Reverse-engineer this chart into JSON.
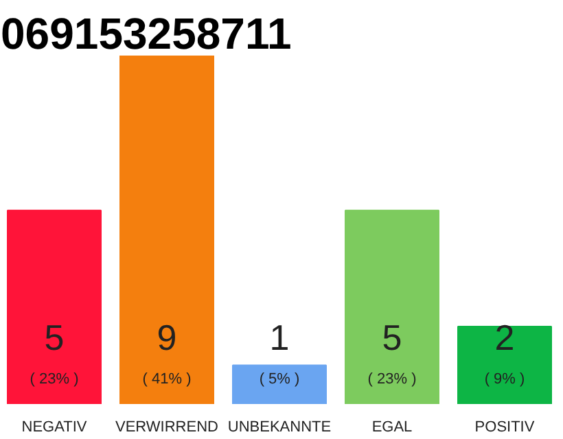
{
  "chart_data": {
    "type": "bar",
    "title": "069153258711",
    "categories": [
      "NEGATIV",
      "VERWIRREND",
      "UNBEKANNTE",
      "EGAL",
      "POSITIV"
    ],
    "values": [
      5,
      9,
      1,
      5,
      2
    ],
    "colors": [
      "#ff1439",
      "#f47f0e",
      "#6aa5f1",
      "#7dcb5e",
      "#0db545"
    ],
    "data_labels": true,
    "annotations": [
      "( 23% )",
      "( 41% )",
      "( 5% )",
      "( 23% )",
      "( 9% )"
    ]
  }
}
